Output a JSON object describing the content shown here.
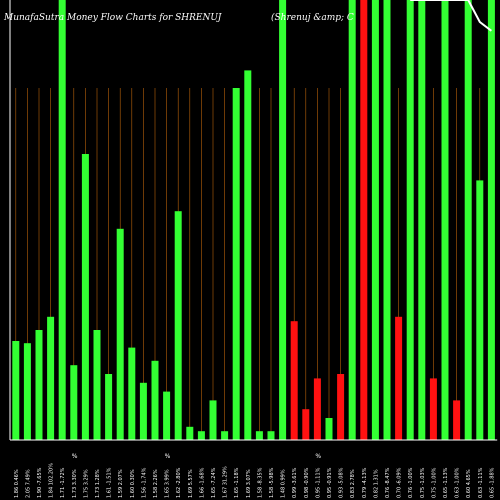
{
  "chart_data": {
    "type": "bar",
    "title": "MunafaSutra  Money Flow  Charts for SHRENUJ",
    "subtitle": "(Shrenuj &amp; C",
    "ylim": [
      0,
      100
    ],
    "grid": true,
    "colors": {
      "up": "#33ff33",
      "down": "#ff1111",
      "price": "#ffffff",
      "grid": "#b8620a",
      "axis": "#ffffff",
      "background": "#000000"
    },
    "categories": [
      "1.86 0.46%",
      "2.05 7.49%",
      "1.90 -7.65%",
      "1.84 102.20%",
      "1.71 -1.72%",
      "1.73 3.30%",
      "1.75 3.29%",
      "1.73 1.28%",
      "1.61 -1.51%",
      "1.59 2.07%",
      "1.60 0.30%",
      "1.56 -1.74%",
      "1.58 2.26%",
      "1.65 3.99%",
      "1.62 -2.80%",
      "1.69 5.57%",
      "1.66 -1.68%",
      "1.65 -7.24%",
      "1.67 31.29%",
      "1.65 -1.18%",
      "1.69 3.07%",
      "1.58 -8.35%",
      "1.58 -5.98%",
      "1.48 0.99%",
      "0.99 -3.61%",
      "0.98 -0.90%",
      "0.95 -1.11%",
      "0.95 -0.91%",
      "0.93 -5.08%",
      "0.83 2.78%",
      "0.79 -4.13%",
      "0.82 1.31%",
      "0.76 -8.47%",
      "0.70 -6.09%",
      "0.76 -1.00%",
      "0.75 -1.03%",
      "0.75 -1.00%",
      "0.65 -1.13%",
      "0.63 -1.00%",
      "0.60 4.65%",
      "0.63 -1.11%",
      "0.65 -1.88%"
    ],
    "values": [
      22.5,
      22,
      25,
      28,
      100,
      17,
      65,
      25,
      15,
      48,
      21,
      13,
      18,
      11,
      52,
      3,
      2,
      9,
      2,
      80,
      84,
      2,
      2,
      100,
      27,
      7,
      14,
      5,
      15,
      100,
      100,
      100,
      100,
      28,
      100,
      100,
      14,
      100,
      9,
      100,
      59,
      100
    ],
    "directions": [
      "up",
      "up",
      "up",
      "up",
      "up",
      "up",
      "up",
      "up",
      "up",
      "up",
      "up",
      "up",
      "up",
      "up",
      "up",
      "up",
      "up",
      "up",
      "up",
      "up",
      "up",
      "up",
      "up",
      "up",
      "down",
      "down",
      "down",
      "up",
      "down",
      "up",
      "down",
      "up",
      "up",
      "down",
      "up",
      "up",
      "down",
      "up",
      "down",
      "up",
      "up",
      "up"
    ],
    "price_line": [
      null,
      null,
      null,
      null,
      null,
      null,
      null,
      null,
      null,
      null,
      null,
      null,
      null,
      null,
      null,
      null,
      null,
      null,
      null,
      null,
      null,
      null,
      null,
      null,
      null,
      null,
      null,
      null,
      null,
      null,
      null,
      null,
      null,
      null,
      100,
      100,
      100,
      100,
      100,
      100,
      95,
      93
    ],
    "percent_marks": [
      {
        "category_index": 5,
        "text": "%"
      },
      {
        "category_index": 13,
        "text": "%"
      },
      {
        "category_index": 26,
        "text": "%"
      }
    ]
  }
}
